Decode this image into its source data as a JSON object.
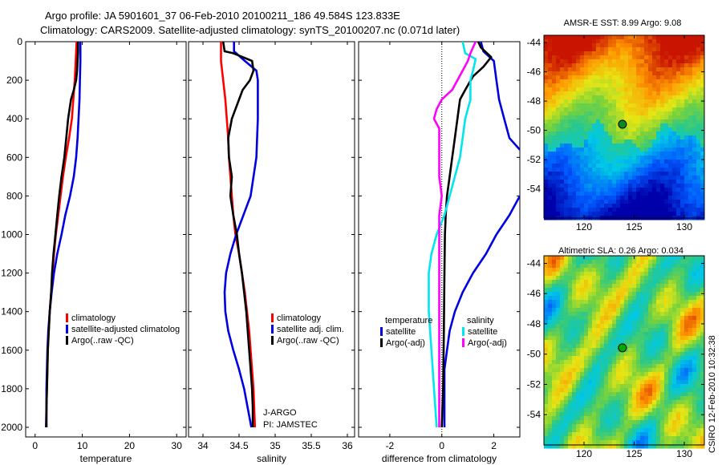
{
  "title": {
    "line1": "Argo profile: JA 5901601_37 06-Feb-2010 20100211_186 49.584S 123.833E",
    "line2": "Climatology: CARS2009. Satellite-adjusted climatology: synTS_20100207.nc (0.071d later)"
  },
  "side_label": "CSIRO 12-Feb-2010 10:32:38",
  "pi_label": {
    "line1": "J-ARGO",
    "line2": "PI: JAMSTEC"
  },
  "colors": {
    "climatology": "#ff0000",
    "satellite": "#0000e0",
    "argo": "#000000",
    "satellite_sal": "#00e5ee",
    "argo_sal": "#ff00ff",
    "map_marker_sst": "#0b8a20",
    "map_marker_sla": "#00aa00"
  },
  "chart_data": [
    {
      "type": "line",
      "name": "temperature-panel",
      "xlabel": "temperature",
      "ylabel": "",
      "xlim": [
        -2,
        32
      ],
      "ylim": [
        2050,
        0
      ],
      "xticks": [
        0,
        10,
        20,
        30
      ],
      "yticks": [
        0,
        200,
        400,
        600,
        800,
        1000,
        1200,
        1400,
        1600,
        1800,
        2000
      ],
      "legend": [
        "climatology",
        "satellite-adjusted climatolog",
        "Argo(..raw -QC)"
      ],
      "legend_position": "bottom-right",
      "series": [
        {
          "name": "climatology",
          "color_key": "climatology",
          "points": [
            [
              8.8,
              0
            ],
            [
              8.6,
              100
            ],
            [
              8.4,
              200
            ],
            [
              8.1,
              300
            ],
            [
              7.8,
              400
            ],
            [
              7.2,
              500
            ],
            [
              6.5,
              600
            ],
            [
              5.9,
              700
            ],
            [
              5.4,
              800
            ],
            [
              4.9,
              900
            ],
            [
              4.4,
              1000
            ],
            [
              4.0,
              1100
            ],
            [
              3.7,
              1200
            ],
            [
              3.4,
              1300
            ],
            [
              3.1,
              1400
            ],
            [
              2.9,
              1500
            ],
            [
              2.7,
              1600
            ],
            [
              2.6,
              1700
            ],
            [
              2.5,
              1800
            ],
            [
              2.4,
              1900
            ],
            [
              2.4,
              2000
            ]
          ]
        },
        {
          "name": "satellite-adjusted climatolog",
          "color_key": "satellite",
          "points": [
            [
              9.6,
              0
            ],
            [
              9.6,
              100
            ],
            [
              9.5,
              200
            ],
            [
              9.4,
              300
            ],
            [
              9.2,
              400
            ],
            [
              9.0,
              500
            ],
            [
              8.7,
              600
            ],
            [
              8.2,
              700
            ],
            [
              7.4,
              800
            ],
            [
              6.4,
              900
            ],
            [
              5.6,
              1000
            ],
            [
              4.7,
              1100
            ],
            [
              4.0,
              1200
            ],
            [
              3.5,
              1300
            ],
            [
              3.1,
              1400
            ],
            [
              2.8,
              1500
            ],
            [
              2.6,
              1600
            ],
            [
              2.5,
              1700
            ],
            [
              2.4,
              1800
            ],
            [
              2.4,
              1900
            ],
            [
              2.3,
              2000
            ]
          ]
        },
        {
          "name": "Argo(..raw -QC)",
          "color_key": "argo",
          "points": [
            [
              9.1,
              0
            ],
            [
              9.1,
              50
            ],
            [
              9.0,
              100
            ],
            [
              8.9,
              150
            ],
            [
              8.7,
              200
            ],
            [
              8.2,
              250
            ],
            [
              7.6,
              300
            ],
            [
              7.0,
              400
            ],
            [
              6.6,
              500
            ],
            [
              6.2,
              600
            ],
            [
              5.6,
              700
            ],
            [
              5.1,
              800
            ],
            [
              4.7,
              900
            ],
            [
              4.3,
              1000
            ],
            [
              3.9,
              1100
            ],
            [
              3.6,
              1200
            ],
            [
              3.4,
              1300
            ],
            [
              3.1,
              1400
            ],
            [
              2.9,
              1500
            ],
            [
              2.7,
              1600
            ],
            [
              2.6,
              1700
            ],
            [
              2.5,
              1800
            ],
            [
              2.4,
              1900
            ],
            [
              2.4,
              2000
            ]
          ]
        }
      ]
    },
    {
      "type": "line",
      "name": "salinity-panel",
      "xlabel": "salinity",
      "ylabel": "",
      "xlim": [
        33.8,
        36.1
      ],
      "ylim": [
        2050,
        0
      ],
      "xticks": [
        34,
        34.5,
        35,
        35.5,
        36
      ],
      "yticks": [
        0,
        200,
        400,
        600,
        800,
        1000,
        1200,
        1400,
        1600,
        1800,
        2000
      ],
      "legend": [
        "climatology",
        "satellite adj. clim.",
        "Argo(..raw -QC)"
      ],
      "legend_position": "bottom-right",
      "series": [
        {
          "name": "climatology",
          "color_key": "climatology",
          "points": [
            [
              34.25,
              0
            ],
            [
              34.25,
              100
            ],
            [
              34.28,
              200
            ],
            [
              34.31,
              300
            ],
            [
              34.33,
              400
            ],
            [
              34.35,
              500
            ],
            [
              34.36,
              600
            ],
            [
              34.38,
              700
            ],
            [
              34.4,
              800
            ],
            [
              34.42,
              900
            ],
            [
              34.45,
              1000
            ],
            [
              34.5,
              1100
            ],
            [
              34.54,
              1200
            ],
            [
              34.58,
              1300
            ],
            [
              34.61,
              1400
            ],
            [
              34.64,
              1500
            ],
            [
              34.66,
              1600
            ],
            [
              34.68,
              1700
            ],
            [
              34.7,
              1800
            ],
            [
              34.71,
              1900
            ],
            [
              34.72,
              2000
            ]
          ]
        },
        {
          "name": "satellite adj. clim.",
          "color_key": "satellite",
          "points": [
            [
              34.43,
              0
            ],
            [
              34.43,
              50
            ],
            [
              34.58,
              100
            ],
            [
              34.74,
              150
            ],
            [
              34.76,
              200
            ],
            [
              34.76,
              400
            ],
            [
              34.74,
              600
            ],
            [
              34.66,
              800
            ],
            [
              34.56,
              900
            ],
            [
              34.46,
              1000
            ],
            [
              34.38,
              1100
            ],
            [
              34.32,
              1200
            ],
            [
              34.3,
              1300
            ],
            [
              34.31,
              1400
            ],
            [
              34.35,
              1500
            ],
            [
              34.42,
              1600
            ],
            [
              34.5,
              1700
            ],
            [
              34.57,
              1800
            ],
            [
              34.62,
              1900
            ],
            [
              34.67,
              2000
            ]
          ]
        },
        {
          "name": "Argo(..raw -QC)",
          "color_key": "argo",
          "points": [
            [
              34.28,
              0
            ],
            [
              34.3,
              50
            ],
            [
              34.42,
              60
            ],
            [
              34.55,
              80
            ],
            [
              34.68,
              100
            ],
            [
              34.7,
              150
            ],
            [
              34.65,
              200
            ],
            [
              34.55,
              250
            ],
            [
              34.5,
              300
            ],
            [
              34.4,
              400
            ],
            [
              34.35,
              500
            ],
            [
              34.36,
              600
            ],
            [
              34.4,
              700
            ],
            [
              34.38,
              800
            ],
            [
              34.42,
              900
            ],
            [
              34.47,
              1000
            ],
            [
              34.5,
              1100
            ],
            [
              34.54,
              1200
            ],
            [
              34.57,
              1300
            ],
            [
              34.6,
              1400
            ],
            [
              34.62,
              1500
            ],
            [
              34.64,
              1600
            ],
            [
              34.66,
              1700
            ],
            [
              34.68,
              1800
            ],
            [
              34.69,
              1900
            ],
            [
              34.69,
              2000
            ]
          ]
        }
      ]
    },
    {
      "type": "line",
      "name": "difference-panel",
      "xlabel": "difference from climatology",
      "ylabel": "",
      "xlim": [
        -3.2,
        3.0
      ],
      "ylim": [
        2050,
        0
      ],
      "xticks": [
        -2,
        0,
        2
      ],
      "yticks": [
        0,
        200,
        400,
        600,
        800,
        1000,
        1200,
        1400,
        1600,
        1800,
        2000
      ],
      "legend_groups": [
        {
          "heading": "temperature",
          "items": [
            "satellite",
            "Argo(-adj)"
          ]
        },
        {
          "heading": "salinity",
          "items": [
            "satellite",
            "Argo(-adj)"
          ]
        }
      ],
      "legend_position": "bottom",
      "series": [
        {
          "name": "temperature satellite",
          "color_key": "satellite",
          "points": [
            [
              1.5,
              0
            ],
            [
              1.6,
              50
            ],
            [
              2.0,
              100
            ],
            [
              2.1,
              200
            ],
            [
              2.2,
              300
            ],
            [
              2.4,
              400
            ],
            [
              2.6,
              500
            ],
            [
              3.0,
              560
            ]
          ]
        },
        {
          "name": "temperature satellite (deep)",
          "color_key": "satellite",
          "points": [
            [
              3.0,
              800
            ],
            [
              2.6,
              900
            ],
            [
              2.1,
              1000
            ],
            [
              1.7,
              1100
            ],
            [
              1.2,
              1200
            ],
            [
              0.8,
              1300
            ],
            [
              0.5,
              1400
            ],
            [
              0.3,
              1500
            ],
            [
              0.2,
              1600
            ],
            [
              0.1,
              1700
            ],
            [
              0.1,
              1800
            ],
            [
              0.1,
              2000
            ]
          ]
        },
        {
          "name": "temperature Argo(-adj)",
          "color_key": "argo",
          "points": [
            [
              1.4,
              0
            ],
            [
              1.5,
              30
            ],
            [
              1.9,
              80
            ],
            [
              1.6,
              130
            ],
            [
              1.2,
              180
            ],
            [
              0.9,
              250
            ],
            [
              0.7,
              300
            ],
            [
              0.6,
              400
            ],
            [
              0.5,
              500
            ],
            [
              0.4,
              600
            ],
            [
              0.3,
              700
            ],
            [
              0.2,
              800
            ],
            [
              0.15,
              900
            ],
            [
              0.12,
              1000
            ],
            [
              0.1,
              1200
            ],
            [
              0.08,
              1500
            ],
            [
              0.05,
              1800
            ],
            [
              0.0,
              2000
            ]
          ]
        },
        {
          "name": "salinity satellite",
          "color_key": "satellite_sal",
          "points": [
            [
              0.8,
              0
            ],
            [
              0.9,
              60
            ],
            [
              1.3,
              90
            ],
            [
              1.2,
              150
            ],
            [
              1.1,
              200
            ],
            [
              1.1,
              300
            ],
            [
              0.9,
              400
            ],
            [
              0.8,
              500
            ],
            [
              0.7,
              600
            ],
            [
              0.5,
              700
            ],
            [
              0.3,
              800
            ],
            [
              0.1,
              900
            ],
            [
              -0.2,
              1000
            ],
            [
              -0.4,
              1100
            ],
            [
              -0.5,
              1200
            ],
            [
              -0.5,
              1400
            ],
            [
              -0.4,
              1600
            ],
            [
              -0.3,
              1800
            ],
            [
              -0.2,
              2000
            ]
          ]
        },
        {
          "name": "salinity Argo(-adj)",
          "color_key": "argo_sal",
          "points": [
            [
              1.3,
              0
            ],
            [
              1.1,
              60
            ],
            [
              1.0,
              100
            ],
            [
              0.8,
              150
            ],
            [
              0.6,
              200
            ],
            [
              0.4,
              250
            ],
            [
              0.0,
              300
            ],
            [
              -0.2,
              350
            ],
            [
              -0.3,
              400
            ],
            [
              -0.1,
              450
            ],
            [
              -0.1,
              550
            ],
            [
              -0.1,
              700
            ],
            [
              0.0,
              800
            ],
            [
              -0.1,
              900
            ],
            [
              -0.1,
              1000
            ],
            [
              -0.1,
              1200
            ],
            [
              -0.1,
              1500
            ],
            [
              -0.1,
              1800
            ],
            [
              -0.1,
              2000
            ]
          ]
        }
      ]
    },
    {
      "type": "heatmap",
      "name": "sst-map",
      "title": "AMSR-E SST: 8.99 Argo: 9.08",
      "xlim": [
        116,
        132
      ],
      "ylim": [
        -56,
        -43.5
      ],
      "xticks": [
        120,
        125,
        130
      ],
      "yticks": [
        -44,
        -46,
        -48,
        -50,
        -52,
        -54
      ],
      "marker": {
        "lon": 123.833,
        "lat": -49.584
      }
    },
    {
      "type": "heatmap",
      "name": "sla-map",
      "title": "Altimetric SLA: 0.26 Argo: 0.034",
      "xlim": [
        116,
        132
      ],
      "ylim": [
        -56,
        -43.5
      ],
      "xticks": [
        120,
        125,
        130
      ],
      "yticks": [
        -44,
        -46,
        -48,
        -50,
        -52,
        -54
      ],
      "marker": {
        "lon": 123.833,
        "lat": -49.584
      }
    }
  ]
}
